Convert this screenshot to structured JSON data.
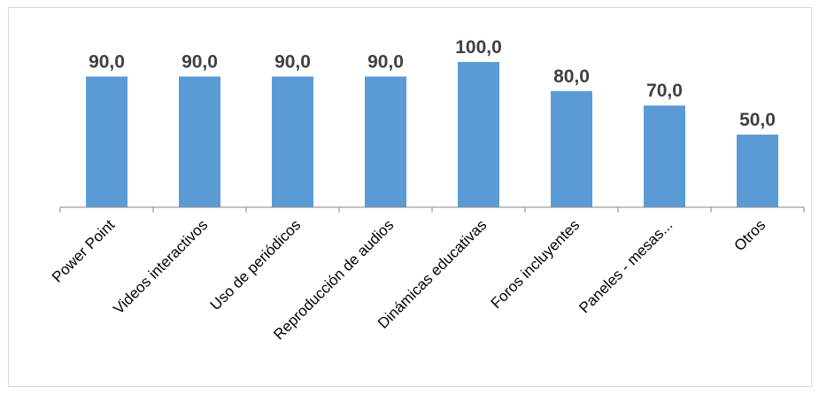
{
  "chart_data": {
    "type": "bar",
    "categories": [
      "Power Point",
      "Videos interactivos",
      "Uso de periódicos",
      "Reproducción de audios",
      "Dinámicas educativas",
      "Foros incluyentes",
      "Paneles - mesas...",
      "Otros"
    ],
    "values": [
      90.0,
      90.0,
      90.0,
      90.0,
      100.0,
      80.0,
      70.0,
      50.0
    ],
    "data_labels": [
      "90,0",
      "90,0",
      "90,0",
      "90,0",
      "100,0",
      "80,0",
      "70,0",
      "50,0"
    ],
    "title": "",
    "xlabel": "",
    "ylabel": "",
    "ylim": [
      0,
      100
    ],
    "grid": false,
    "legend": "none",
    "bar_color": "#5b9bd5",
    "label_color": "#404040"
  }
}
